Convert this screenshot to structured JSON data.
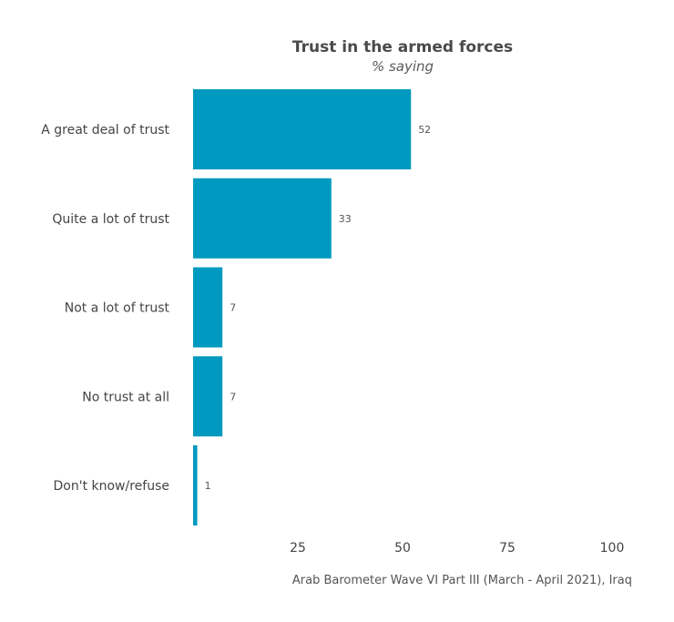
{
  "chart_data": {
    "type": "bar",
    "orientation": "horizontal",
    "title": "Trust in the armed forces",
    "subtitle": "% saying",
    "categories": [
      "A great deal of trust",
      "Quite a lot of trust",
      "Not a lot of trust",
      "No trust at all",
      "Don't know/refuse"
    ],
    "values": [
      52,
      33,
      7,
      7,
      1
    ],
    "value_labels": [
      "52",
      "33",
      "7",
      "7",
      "1"
    ],
    "xlim": [
      0,
      100
    ],
    "xticks": [
      25,
      50,
      75,
      100
    ],
    "xtick_labels": [
      "25",
      "50",
      "75",
      "100"
    ],
    "grid": false,
    "legend": false,
    "bar_color": "#0099bf",
    "caption": "Arab Barometer Wave VI Part III (March - April 2021), Iraq"
  }
}
